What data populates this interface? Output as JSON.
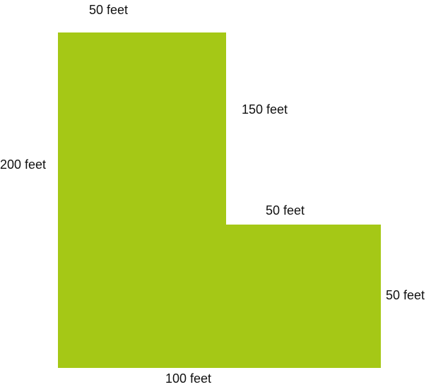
{
  "diagram": {
    "fill_color": "#a5c816",
    "labels": {
      "top": "50 feet",
      "left": "200 feet",
      "inner_vertical": "150 feet",
      "inner_horizontal": "50 feet",
      "right": "50 feet",
      "bottom": "100 feet"
    }
  }
}
